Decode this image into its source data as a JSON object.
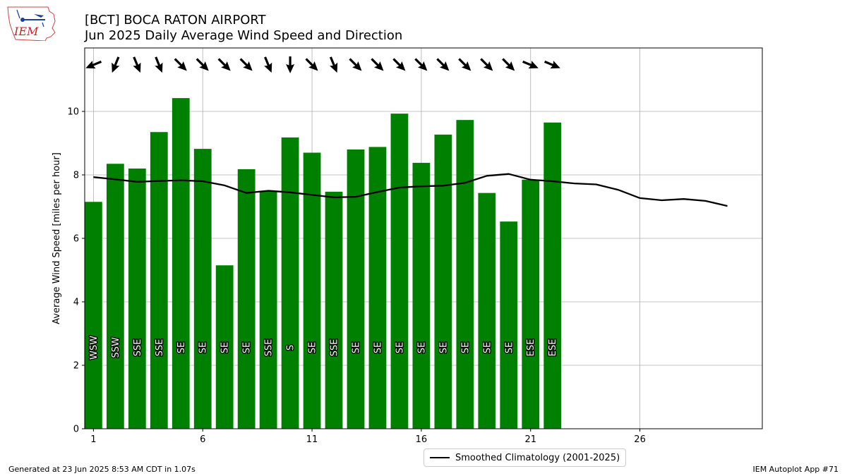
{
  "logo_text": "IEM",
  "header": {
    "title_line1": "[BCT] BOCA RATON AIRPORT",
    "title_line2": "Jun 2025 Daily Average Wind Speed and Direction"
  },
  "footer": {
    "generated": "Generated at 23 Jun 2025 8:53 AM CDT in 1.07s",
    "app": "IEM Autoplot App #71"
  },
  "colors": {
    "bar": "#008000",
    "line": "#000000",
    "grid": "#b0b0b0"
  },
  "chart_data": {
    "type": "bar",
    "ylabel": "Average Wind Speed [miles per hour]",
    "xlabel": "",
    "xlim": [
      0.6,
      31.6
    ],
    "ylim": [
      0,
      12
    ],
    "xticks": [
      1,
      6,
      11,
      16,
      21,
      26
    ],
    "yticks": [
      0,
      2,
      4,
      6,
      8,
      10
    ],
    "grid": true,
    "legend_position": "bottom-center",
    "days": [
      1,
      2,
      3,
      4,
      5,
      6,
      7,
      8,
      9,
      10,
      11,
      12,
      13,
      14,
      15,
      16,
      17,
      18,
      19,
      20,
      21,
      22
    ],
    "speeds": [
      7.15,
      8.35,
      8.2,
      9.35,
      10.42,
      8.82,
      5.15,
      8.18,
      7.5,
      9.18,
      8.7,
      7.47,
      8.8,
      8.88,
      9.93,
      8.38,
      9.27,
      9.73,
      7.43,
      6.53,
      7.85,
      9.65
    ],
    "directions": [
      "WSW",
      "SSW",
      "SSE",
      "SSE",
      "SE",
      "SE",
      "SE",
      "SE",
      "SSE",
      "S",
      "SE",
      "SSE",
      "SE",
      "SE",
      "SE",
      "SE",
      "SE",
      "SE",
      "SE",
      "SE",
      "ESE",
      "ESE"
    ],
    "arrow_degrees": [
      247.5,
      202.5,
      157.5,
      157.5,
      135,
      135,
      135,
      135,
      157.5,
      180,
      135,
      157.5,
      135,
      135,
      135,
      135,
      135,
      135,
      135,
      135,
      112.5,
      112.5
    ],
    "climatology": {
      "name": "Smoothed Climatology (2001-2025)",
      "x": [
        1,
        2,
        3,
        4,
        5,
        6,
        7,
        8,
        9,
        10,
        11,
        12,
        13,
        14,
        15,
        16,
        17,
        18,
        19,
        20,
        21,
        22,
        23,
        24,
        25,
        26,
        27,
        28,
        29,
        30
      ],
      "y": [
        7.93,
        7.86,
        7.78,
        7.81,
        7.83,
        7.8,
        7.67,
        7.43,
        7.5,
        7.45,
        7.37,
        7.29,
        7.31,
        7.46,
        7.6,
        7.64,
        7.66,
        7.75,
        7.97,
        8.03,
        7.85,
        7.8,
        7.73,
        7.7,
        7.53,
        7.27,
        7.2,
        7.24,
        7.18,
        7.02
      ]
    }
  }
}
